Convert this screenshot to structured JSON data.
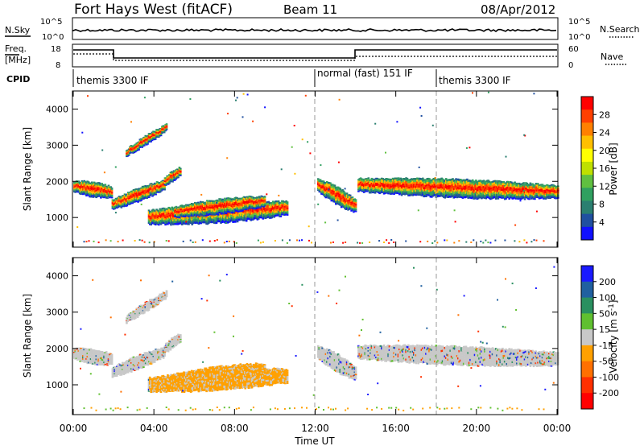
{
  "header": {
    "station": "Fort Hays West (fitACF)",
    "beam": "Beam 11",
    "date": "08/Apr/2012"
  },
  "noise_panel": {
    "left_label": "N.Sky",
    "right_label": "N.Search",
    "left_ticks": [
      "10^5",
      "10^0"
    ],
    "right_ticks": [
      "10^5",
      "10^0"
    ]
  },
  "freq_panel": {
    "left_label_top": "Freq.",
    "left_label_bottom": "[MHz]",
    "right_label": "Nave",
    "left_ticks": [
      "18",
      "8"
    ],
    "right_ticks": [
      "60",
      "0"
    ]
  },
  "cpid": {
    "label": "CPID",
    "segments": [
      {
        "label": "themis 3300 IF",
        "start_hour": 0
      },
      {
        "label": "normal (fast) 151 IF",
        "start_hour": 12
      },
      {
        "label": "themis 3300 IF",
        "start_hour": 18
      }
    ]
  },
  "chart_data": [
    {
      "type": "heatmap",
      "parameter": "Power",
      "ylabel": "Slant Range [km]",
      "colorbar_label": "Power [dB]",
      "colorbar_ticks": [
        "28",
        "24",
        "20",
        "16",
        "12",
        "8",
        "4"
      ],
      "colorbar_colors": [
        "#ff0000",
        "#ff4000",
        "#ff8000",
        "#ffbf00",
        "#ffff00",
        "#bfe000",
        "#60c040",
        "#30a060",
        "#2a7f70",
        "#2050a0",
        "#1010ff"
      ],
      "yticks": [
        "4000",
        "3000",
        "2000",
        "1000"
      ],
      "ylim": [
        180,
        4500
      ]
    },
    {
      "type": "heatmap",
      "parameter": "Velocity",
      "ylabel": "Slant Range [km]",
      "colorbar_label": "Velocity [m s^-1]",
      "colorbar_ticks": [
        "200",
        "100",
        "50",
        "15",
        "-15",
        "-50",
        "-100",
        "-200"
      ],
      "colorbar_colors": [
        "#1a1aff",
        "#2060a0",
        "#2a9060",
        "#60c030",
        "#c8c8c8",
        "#ffa000",
        "#ff7000",
        "#ff3000",
        "#ff0000"
      ],
      "yticks": [
        "4000",
        "3000",
        "2000",
        "1000"
      ],
      "ylim": [
        180,
        4500
      ]
    }
  ],
  "time_axis": {
    "xlabel": "Time UT",
    "ticks": [
      "00:00",
      "04:00",
      "08:00",
      "12:00",
      "16:00",
      "20:00",
      "00:00"
    ],
    "xlim_hours": [
      0,
      24
    ]
  }
}
